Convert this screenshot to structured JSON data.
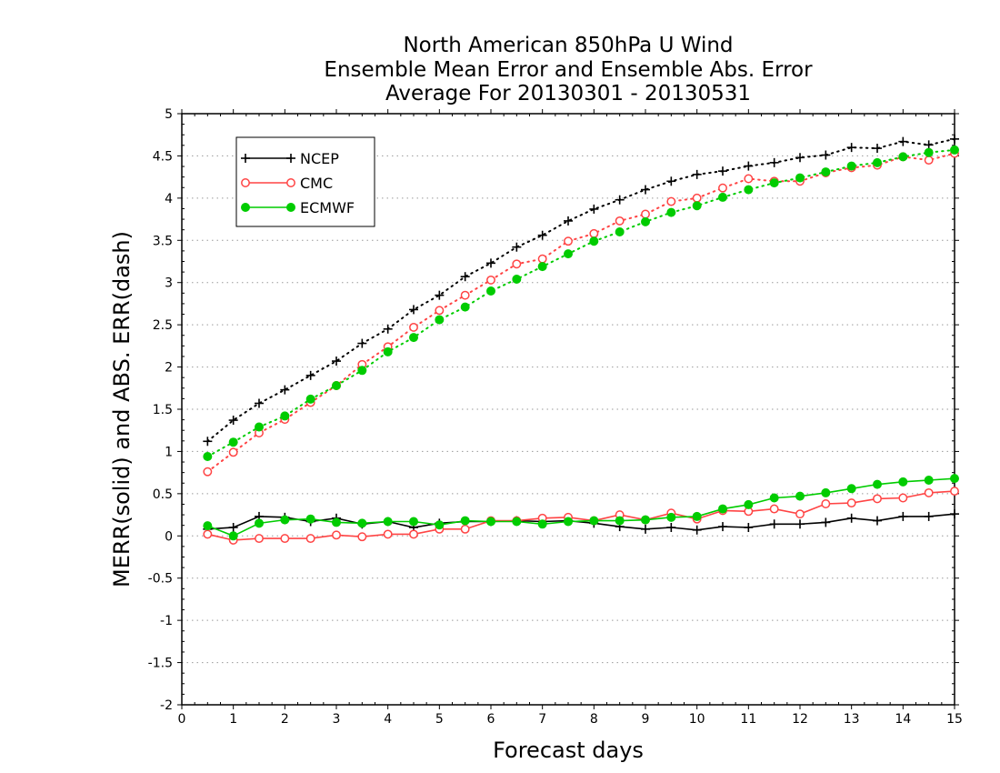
{
  "chart_data": {
    "type": "line",
    "title": [
      "North American 850hPa U Wind",
      "Ensemble Mean Error and Ensemble Abs. Error",
      "Average For 20130301 - 20130531"
    ],
    "xlabel": "Forecast days",
    "ylabel": "MERR(solid) and ABS. ERR(dash)",
    "xlim": [
      0,
      15
    ],
    "ylim": [
      -2,
      5
    ],
    "xticks": [
      "0",
      "1",
      "2",
      "3",
      "4",
      "5",
      "6",
      "7",
      "8",
      "9",
      "10",
      "11",
      "12",
      "13",
      "14",
      "15"
    ],
    "yticks": [
      "5",
      "4.5",
      "4",
      "3.5",
      "3",
      "2.5",
      "2",
      "1.5",
      "1",
      "0.5",
      "0",
      "-0.5",
      "-1",
      "-1.5",
      "-2"
    ],
    "grid": "horizontal dotted",
    "legend_position": "top-left",
    "x": [
      0.5,
      1,
      1.5,
      2,
      2.5,
      3,
      3.5,
      4,
      4.5,
      5,
      5.5,
      6,
      6.5,
      7,
      7.5,
      8,
      8.5,
      9,
      9.5,
      10,
      10.5,
      11,
      11.5,
      12,
      12.5,
      13,
      13.5,
      14,
      14.5,
      15
    ],
    "series": [
      {
        "name": "NCEP",
        "color": "#000000",
        "marker": "plus",
        "mean_error": [
          0.08,
          0.1,
          0.23,
          0.22,
          0.17,
          0.21,
          0.14,
          0.17,
          0.1,
          0.15,
          0.17,
          0.17,
          0.18,
          0.17,
          0.18,
          0.15,
          0.11,
          0.08,
          0.1,
          0.07,
          0.11,
          0.1,
          0.14,
          0.14,
          0.16,
          0.21,
          0.18,
          0.23,
          0.23,
          0.26
        ],
        "abs_error": [
          1.12,
          1.37,
          1.57,
          1.73,
          1.9,
          2.07,
          2.28,
          2.45,
          2.68,
          2.85,
          3.07,
          3.23,
          3.42,
          3.56,
          3.73,
          3.87,
          3.98,
          4.1,
          4.2,
          4.28,
          4.32,
          4.38,
          4.42,
          4.48,
          4.51,
          4.6,
          4.59,
          4.67,
          4.63,
          4.7
        ]
      },
      {
        "name": "CMC",
        "color": "#ff4444",
        "marker": "open-circle",
        "mean_error": [
          0.02,
          -0.05,
          -0.03,
          -0.03,
          -0.03,
          0.01,
          -0.01,
          0.02,
          0.02,
          0.08,
          0.08,
          0.18,
          0.18,
          0.21,
          0.22,
          0.18,
          0.25,
          0.19,
          0.27,
          0.2,
          0.3,
          0.29,
          0.32,
          0.26,
          0.38,
          0.39,
          0.44,
          0.45,
          0.51,
          0.53
        ],
        "abs_error": [
          0.76,
          0.99,
          1.22,
          1.38,
          1.58,
          1.78,
          2.03,
          2.24,
          2.47,
          2.67,
          2.85,
          3.03,
          3.22,
          3.28,
          3.49,
          3.58,
          3.73,
          3.81,
          3.96,
          4.0,
          4.12,
          4.23,
          4.2,
          4.2,
          4.3,
          4.36,
          4.39,
          4.49,
          4.45,
          4.53
        ]
      },
      {
        "name": "ECMWF",
        "color": "#00cc00",
        "marker": "filled-circle",
        "mean_error": [
          0.12,
          0.0,
          0.15,
          0.19,
          0.2,
          0.16,
          0.15,
          0.17,
          0.17,
          0.13,
          0.18,
          0.17,
          0.17,
          0.14,
          0.17,
          0.18,
          0.18,
          0.19,
          0.22,
          0.23,
          0.32,
          0.37,
          0.45,
          0.47,
          0.51,
          0.56,
          0.61,
          0.64,
          0.66,
          0.68
        ],
        "abs_error": [
          0.94,
          1.11,
          1.29,
          1.42,
          1.62,
          1.78,
          1.96,
          2.18,
          2.35,
          2.56,
          2.71,
          2.9,
          3.04,
          3.19,
          3.34,
          3.49,
          3.6,
          3.72,
          3.83,
          3.91,
          4.01,
          4.1,
          4.18,
          4.24,
          4.31,
          4.38,
          4.42,
          4.49,
          4.54,
          4.57
        ]
      }
    ]
  }
}
